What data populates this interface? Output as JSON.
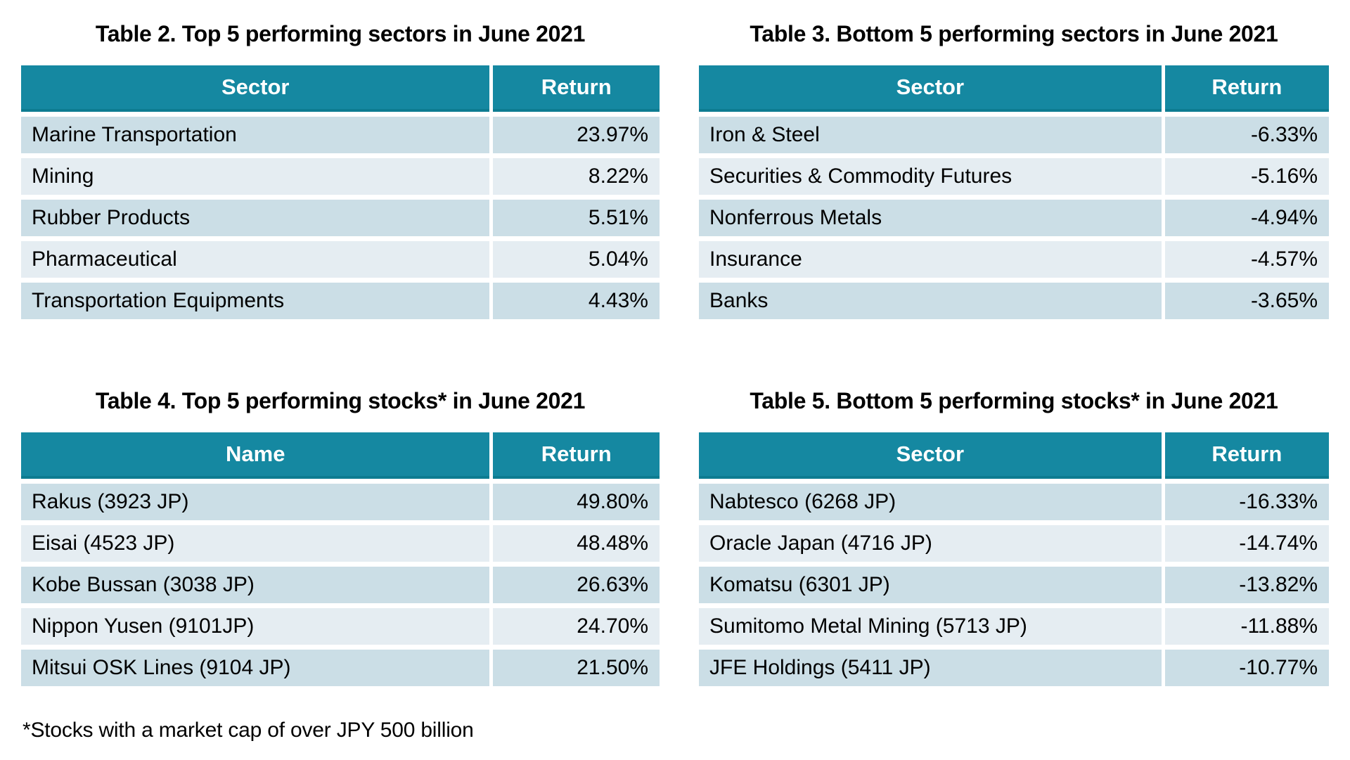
{
  "colors": {
    "header_bg": "#1588A1",
    "header_border_bottom": "#0D7C91",
    "header_text": "#ffffff",
    "row_dark": "#CBDEE6",
    "row_light": "#E5EDF2",
    "body_text": "#000000",
    "page_bg": "#ffffff"
  },
  "tables": [
    {
      "title": "Table 2. Top 5 performing sectors in June 2021",
      "columns": [
        "Sector",
        "Return"
      ],
      "rows": [
        [
          "Marine Transportation",
          "23.97%"
        ],
        [
          "Mining",
          "8.22%"
        ],
        [
          "Rubber Products",
          "5.51%"
        ],
        [
          "Pharmaceutical",
          "5.04%"
        ],
        [
          "Transportation Equipments",
          "4.43%"
        ]
      ]
    },
    {
      "title": "Table 3. Bottom 5 performing sectors in June 2021",
      "columns": [
        "Sector",
        "Return"
      ],
      "rows": [
        [
          "Iron & Steel",
          "-6.33%"
        ],
        [
          "Securities & Commodity Futures",
          "-5.16%"
        ],
        [
          "Nonferrous Metals",
          "-4.94%"
        ],
        [
          "Insurance",
          "-4.57%"
        ],
        [
          "Banks",
          "-3.65%"
        ]
      ]
    },
    {
      "title": "Table 4. Top 5 performing stocks* in June 2021",
      "columns": [
        "Name",
        "Return"
      ],
      "rows": [
        [
          "Rakus (3923 JP)",
          "49.80%"
        ],
        [
          "Eisai (4523 JP)",
          "48.48%"
        ],
        [
          "Kobe Bussan (3038 JP)",
          "26.63%"
        ],
        [
          "Nippon Yusen (9101JP)",
          "24.70%"
        ],
        [
          "Mitsui OSK Lines (9104 JP)",
          "21.50%"
        ]
      ]
    },
    {
      "title": "Table 5. Bottom 5 performing stocks* in June 2021",
      "columns": [
        "Sector",
        "Return"
      ],
      "rows": [
        [
          "Nabtesco (6268 JP)",
          "-16.33%"
        ],
        [
          "Oracle Japan (4716 JP)",
          "-14.74%"
        ],
        [
          "Komatsu (6301 JP)",
          "-13.82%"
        ],
        [
          "Sumitomo Metal Mining (5713 JP)",
          "-11.88%"
        ],
        [
          "JFE Holdings (5411 JP)",
          "-10.77%"
        ]
      ]
    }
  ],
  "footnote": "*Stocks with a market cap of over JPY 500 billion"
}
